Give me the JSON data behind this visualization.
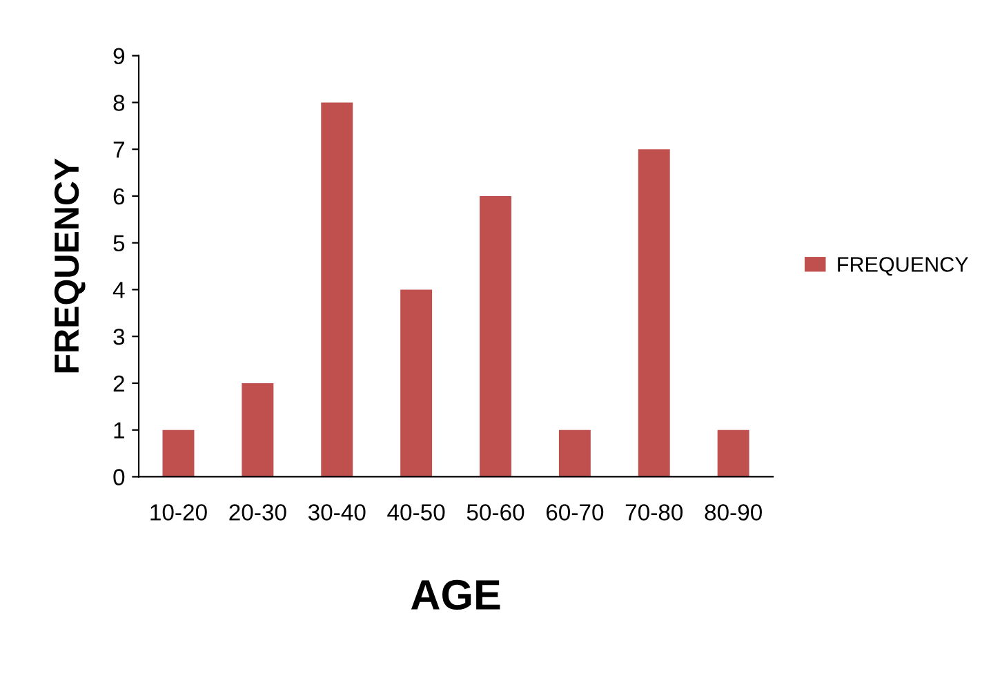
{
  "chart_data": {
    "type": "bar",
    "xlabel": "AGE",
    "ylabel": "FREQUENCY",
    "categories": [
      "10-20",
      "20-30",
      "30-40",
      "40-50",
      "50-60",
      "60-70",
      "70-80",
      "80-90"
    ],
    "series": [
      {
        "name": "FREQUENCY",
        "color": "#c0504d",
        "values": [
          1,
          2,
          8,
          4,
          6,
          1,
          7,
          1
        ]
      }
    ],
    "ylim": [
      0,
      9
    ],
    "yticks": [
      0,
      1,
      2,
      3,
      4,
      5,
      6,
      7,
      8,
      9
    ],
    "grid": false,
    "legend": "right"
  }
}
